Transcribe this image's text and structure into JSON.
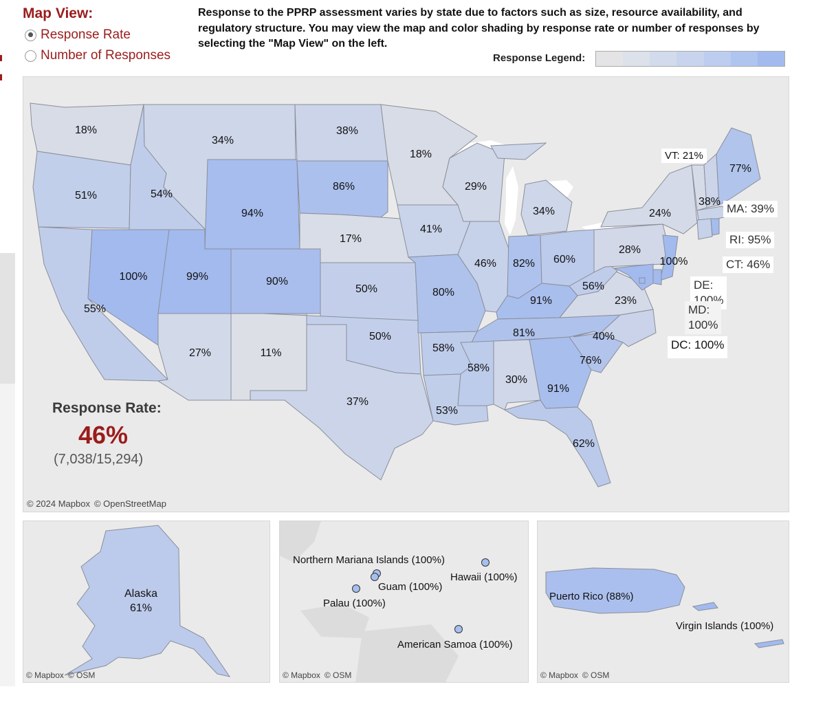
{
  "map_view": {
    "title": "Map View:",
    "options": [
      {
        "label": "Response Rate",
        "selected": true
      },
      {
        "label": "Number of Responses",
        "selected": false
      }
    ]
  },
  "description": "Response to the PPRP assessment varies by state due to factors such as size, resource availability, and regulatory structure. You may view the map and color shading by response rate or number of responses by selecting the \"Map View\" on the left.",
  "legend": {
    "label": "Response Legend:",
    "colors": [
      "#e4e4e6",
      "#dce1ea",
      "#d2dbec",
      "#c8d4ee",
      "#bccdf0",
      "#b0c4f0",
      "#a2baee"
    ]
  },
  "colors": {
    "accent": "#9b1c1c",
    "panel_bg": "#eaeaea",
    "state_border": "#8a8e99"
  },
  "main_map": {
    "credit": [
      "© 2024 Mapbox",
      "© OpenStreetMap"
    ],
    "states": [
      {
        "state": "WA",
        "label": "18%",
        "rate": 0.18
      },
      {
        "state": "OR",
        "label": "51%",
        "rate": 0.51
      },
      {
        "state": "CA",
        "label": "55%",
        "rate": 0.55
      },
      {
        "state": "ID",
        "label": "54%",
        "rate": 0.54
      },
      {
        "state": "NV",
        "label": "100%",
        "rate": 1.0
      },
      {
        "state": "MT",
        "label": "34%",
        "rate": 0.34
      },
      {
        "state": "WY",
        "label": "94%",
        "rate": 0.94
      },
      {
        "state": "UT",
        "label": "99%",
        "rate": 0.99
      },
      {
        "state": "AZ",
        "label": "27%",
        "rate": 0.27
      },
      {
        "state": "CO",
        "label": "90%",
        "rate": 0.9
      },
      {
        "state": "NM",
        "label": "11%",
        "rate": 0.11
      },
      {
        "state": "ND",
        "label": "38%",
        "rate": 0.38
      },
      {
        "state": "SD",
        "label": "86%",
        "rate": 0.86
      },
      {
        "state": "NE",
        "label": "17%",
        "rate": 0.17
      },
      {
        "state": "KS",
        "label": "50%",
        "rate": 0.5
      },
      {
        "state": "OK",
        "label": "50%",
        "rate": 0.5
      },
      {
        "state": "TX",
        "label": "37%",
        "rate": 0.37
      },
      {
        "state": "MN",
        "label": "18%",
        "rate": 0.18
      },
      {
        "state": "IA",
        "label": "41%",
        "rate": 0.41
      },
      {
        "state": "MO",
        "label": "80%",
        "rate": 0.8
      },
      {
        "state": "AR",
        "label": "58%",
        "rate": 0.58
      },
      {
        "state": "LA",
        "label": "53%",
        "rate": 0.53
      },
      {
        "state": "WI",
        "label": "29%",
        "rate": 0.29
      },
      {
        "state": "IL",
        "label": "46%",
        "rate": 0.46
      },
      {
        "state": "MI",
        "label": "34%",
        "rate": 0.34
      },
      {
        "state": "IN",
        "label": "82%",
        "rate": 0.82
      },
      {
        "state": "OH",
        "label": "60%",
        "rate": 0.6
      },
      {
        "state": "KY",
        "label": "91%",
        "rate": 0.91
      },
      {
        "state": "TN",
        "label": "81%",
        "rate": 0.81
      },
      {
        "state": "MS",
        "label": "58%",
        "rate": 0.58
      },
      {
        "state": "AL",
        "label": "30%",
        "rate": 0.3
      },
      {
        "state": "GA",
        "label": "91%",
        "rate": 0.91
      },
      {
        "state": "FL",
        "label": "62%",
        "rate": 0.62
      },
      {
        "state": "SC",
        "label": "76%",
        "rate": 0.76
      },
      {
        "state": "NC",
        "label": "40%",
        "rate": 0.4
      },
      {
        "state": "VA",
        "label": "23%",
        "rate": 0.23
      },
      {
        "state": "WV",
        "label": "56%",
        "rate": 0.56
      },
      {
        "state": "PA",
        "label": "28%",
        "rate": 0.28
      },
      {
        "state": "NY",
        "label": "24%",
        "rate": 0.24
      },
      {
        "state": "NJ",
        "label": "100%",
        "rate": 1.0
      },
      {
        "state": "NH",
        "label": "38%",
        "rate": 0.38
      },
      {
        "state": "ME",
        "label": "77%",
        "rate": 0.77
      },
      {
        "state": "VT",
        "label": "VT: 21%",
        "rate": 0.21
      },
      {
        "state": "MA",
        "label": "MA: 39%",
        "rate": 0.39
      },
      {
        "state": "RI",
        "label": "RI: 95%",
        "rate": 0.95
      },
      {
        "state": "CT",
        "label": "CT: 46%",
        "rate": 0.46
      },
      {
        "state": "DE",
        "label": "DE:\n100%",
        "rate": 1.0
      },
      {
        "state": "MD",
        "label": "MD:\n100%",
        "rate": 1.0
      },
      {
        "state": "DC",
        "label": "DC: 100%",
        "rate": 1.0
      }
    ]
  },
  "summary": {
    "title": "Response Rate:",
    "value": "46%",
    "counts": "(7,038/15,294)"
  },
  "alaska_map": {
    "label_line1": "Alaska",
    "label_line2": "61%",
    "rate": 0.61,
    "credit": [
      "© Mapbox",
      "© OSM"
    ]
  },
  "pacific_map": {
    "credit": [
      "© Mapbox",
      "© OSM"
    ],
    "territories": [
      {
        "label": "Northern Mariana Islands (100%)",
        "rate": 1.0
      },
      {
        "label": "Hawaii (100%)",
        "rate": 1.0
      },
      {
        "label": "Guam (100%)",
        "rate": 1.0
      },
      {
        "label": "Palau (100%)",
        "rate": 1.0
      },
      {
        "label": "American Samoa (100%)",
        "rate": 1.0
      }
    ]
  },
  "caribbean_map": {
    "credit": [
      "© Mapbox",
      "© OSM"
    ],
    "territories": [
      {
        "label": "Puerto Rico (88%)",
        "rate": 0.88
      },
      {
        "label": "Virgin Islands (100%)",
        "rate": 1.0
      }
    ]
  }
}
